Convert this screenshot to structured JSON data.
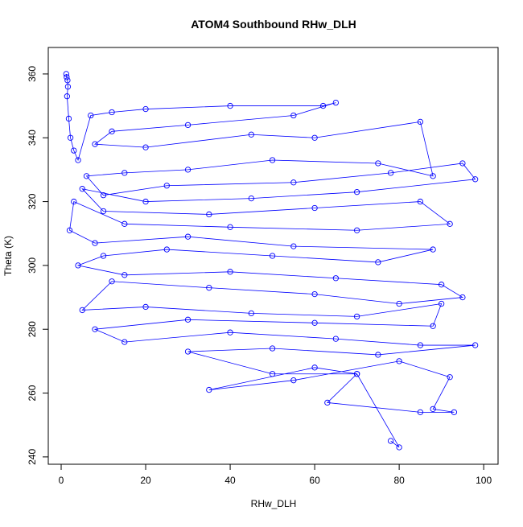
{
  "chart_data": {
    "type": "line",
    "markers": "circle",
    "title": "ATOM4 Southbound RHw_DLH",
    "x_label": "RHw_DLH",
    "y_label": "Theta (K)",
    "color": "#0000ff",
    "xlim": [
      -3.05,
      103.4
    ],
    "ylim": [
      237.7,
      368.3
    ],
    "xticks": [
      0,
      20,
      40,
      60,
      80,
      100
    ],
    "yticks": [
      240,
      260,
      280,
      300,
      320,
      340,
      360
    ],
    "x": [
      1.2,
      1.3,
      1.5,
      1.6,
      1.4,
      1.8,
      2.2,
      3,
      4,
      7,
      12,
      20,
      40,
      62,
      65,
      55,
      30,
      12,
      8,
      20,
      45,
      60,
      85,
      88,
      75,
      50,
      30,
      15,
      6,
      10,
      25,
      55,
      78,
      95,
      98,
      70,
      45,
      20,
      5,
      10,
      35,
      60,
      85,
      92,
      70,
      40,
      15,
      3,
      2,
      8,
      30,
      55,
      88,
      75,
      50,
      25,
      10,
      4,
      15,
      40,
      65,
      90,
      95,
      80,
      60,
      35,
      12,
      5,
      20,
      45,
      70,
      90,
      88,
      60,
      30,
      8,
      15,
      40,
      65,
      85,
      98,
      75,
      50,
      30,
      50,
      70,
      60,
      35,
      55,
      80,
      92,
      88,
      93,
      85,
      63,
      70,
      80,
      78
    ],
    "y": [
      360,
      359,
      358,
      356,
      353,
      346,
      340,
      336,
      333,
      347,
      348,
      349,
      350,
      350,
      351,
      347,
      344,
      342,
      338,
      337,
      341,
      340,
      345,
      328,
      332,
      333,
      330,
      329,
      328,
      322,
      325,
      326,
      329,
      332,
      327,
      323,
      321,
      320,
      324,
      317,
      316,
      318,
      320,
      313,
      311,
      312,
      313,
      320,
      311,
      307,
      309,
      306,
      305,
      301,
      303,
      305,
      303,
      300,
      297,
      298,
      296,
      294,
      290,
      288,
      291,
      293,
      295,
      286,
      287,
      285,
      284,
      288,
      281,
      282,
      283,
      280,
      276,
      279,
      277,
      275,
      275,
      272,
      274,
      273,
      266,
      266,
      268,
      261,
      264,
      270,
      265,
      255,
      254,
      254,
      257,
      266,
      243,
      245
    ]
  }
}
